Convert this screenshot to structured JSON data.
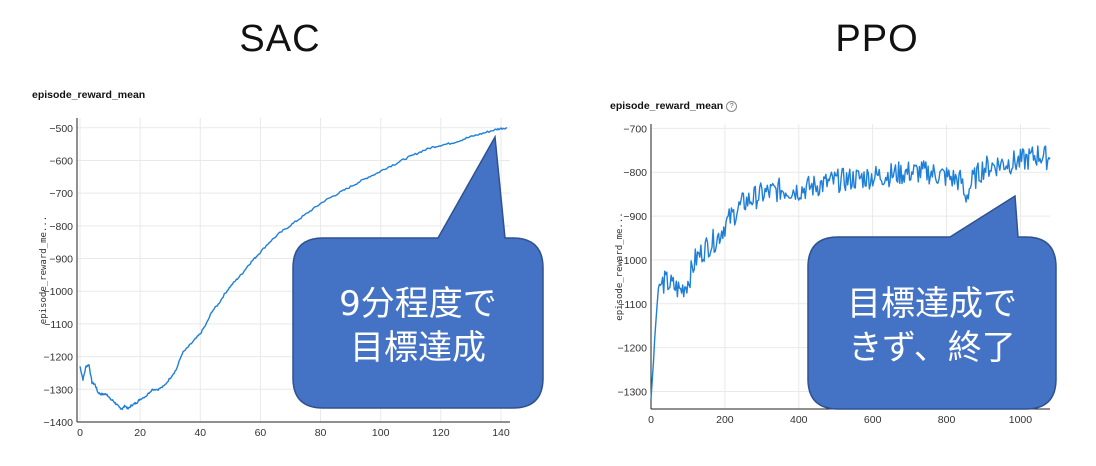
{
  "slide": {
    "left_title": "SAC",
    "right_title": "PPO"
  },
  "colors": {
    "line": "#1f7fd6",
    "callout_fill": "#4472c4",
    "callout_stroke": "#2f528f",
    "grid": "#e9e9e9"
  },
  "chart_data": [
    {
      "type": "line",
      "title": "episode_reward_mean",
      "ylabel": "episode_reward_me...",
      "xlim": [
        -1,
        143
      ],
      "ylim": [
        -1400,
        -470
      ],
      "xticks": [
        0,
        20,
        40,
        60,
        80,
        100,
        120,
        140
      ],
      "yticks": [
        -500,
        -600,
        -700,
        -800,
        -900,
        -1000,
        -1100,
        -1200,
        -1300,
        -1400
      ],
      "ytick_labels": [
        "−500",
        "−600",
        "−700",
        "−800",
        "−900",
        "−1000",
        "−1100",
        "−1200",
        "−1300",
        "−1400"
      ],
      "grid": true,
      "series": [
        {
          "x": [
            0,
            1,
            2,
            3,
            4,
            5,
            6,
            7,
            8,
            9,
            10,
            11,
            12,
            13,
            14,
            15,
            16,
            17,
            18,
            19,
            20,
            22,
            24,
            26,
            28,
            30,
            32,
            34,
            36,
            38,
            40,
            42,
            44,
            46,
            48,
            50,
            52,
            54,
            56,
            58,
            60,
            63,
            66,
            69,
            72,
            75,
            78,
            81,
            84,
            87,
            90,
            93,
            96,
            99,
            102,
            105,
            108,
            111,
            114,
            117,
            120,
            123,
            126,
            129,
            132,
            135,
            138,
            140,
            142
          ],
          "y": [
            -1230,
            -1270,
            -1230,
            -1225,
            -1280,
            -1285,
            -1310,
            -1315,
            -1315,
            -1315,
            -1330,
            -1335,
            -1345,
            -1355,
            -1360,
            -1350,
            -1360,
            -1350,
            -1345,
            -1340,
            -1330,
            -1320,
            -1300,
            -1300,
            -1290,
            -1265,
            -1240,
            -1190,
            -1170,
            -1150,
            -1130,
            -1100,
            -1060,
            -1040,
            -1010,
            -985,
            -965,
            -945,
            -920,
            -900,
            -880,
            -850,
            -825,
            -805,
            -785,
            -765,
            -745,
            -725,
            -710,
            -695,
            -680,
            -665,
            -650,
            -638,
            -622,
            -610,
            -595,
            -583,
            -570,
            -560,
            -553,
            -548,
            -540,
            -530,
            -522,
            -514,
            -506,
            -502,
            -500
          ]
        }
      ],
      "annotation": [
        "9分程度で",
        "目標達成"
      ]
    },
    {
      "type": "line",
      "title": "episode_reward_mean",
      "ylabel": "episode_reward_me...",
      "xlim": [
        0,
        1080
      ],
      "ylim": [
        -1340,
        -690
      ],
      "xticks": [
        0,
        200,
        400,
        600,
        800,
        1000
      ],
      "yticks": [
        -700,
        -800,
        -900,
        -1000,
        -1100,
        -1200,
        -1300
      ],
      "ytick_labels": [
        "−700",
        "−800",
        "−900",
        "−1000",
        "−1100",
        "−1200",
        "−1300"
      ],
      "grid": true,
      "series": [
        {
          "x": [
            0,
            10,
            20,
            40,
            60,
            80,
            100,
            120,
            150,
            180,
            200,
            250,
            300,
            350,
            400,
            450,
            500,
            550,
            600,
            650,
            700,
            750,
            800,
            840,
            850,
            870,
            900,
            950,
            1000,
            1050,
            1080
          ],
          "y": [
            -1320,
            -1180,
            -1060,
            -1050,
            -1060,
            -1070,
            -1050,
            -1000,
            -970,
            -950,
            -920,
            -870,
            -850,
            -840,
            -840,
            -830,
            -820,
            -815,
            -810,
            -805,
            -800,
            -800,
            -810,
            -820,
            -860,
            -820,
            -790,
            -780,
            -775,
            -760,
            -770
          ]
        }
      ],
      "annotation": [
        "目標達成で",
        "きず、終了"
      ]
    }
  ]
}
